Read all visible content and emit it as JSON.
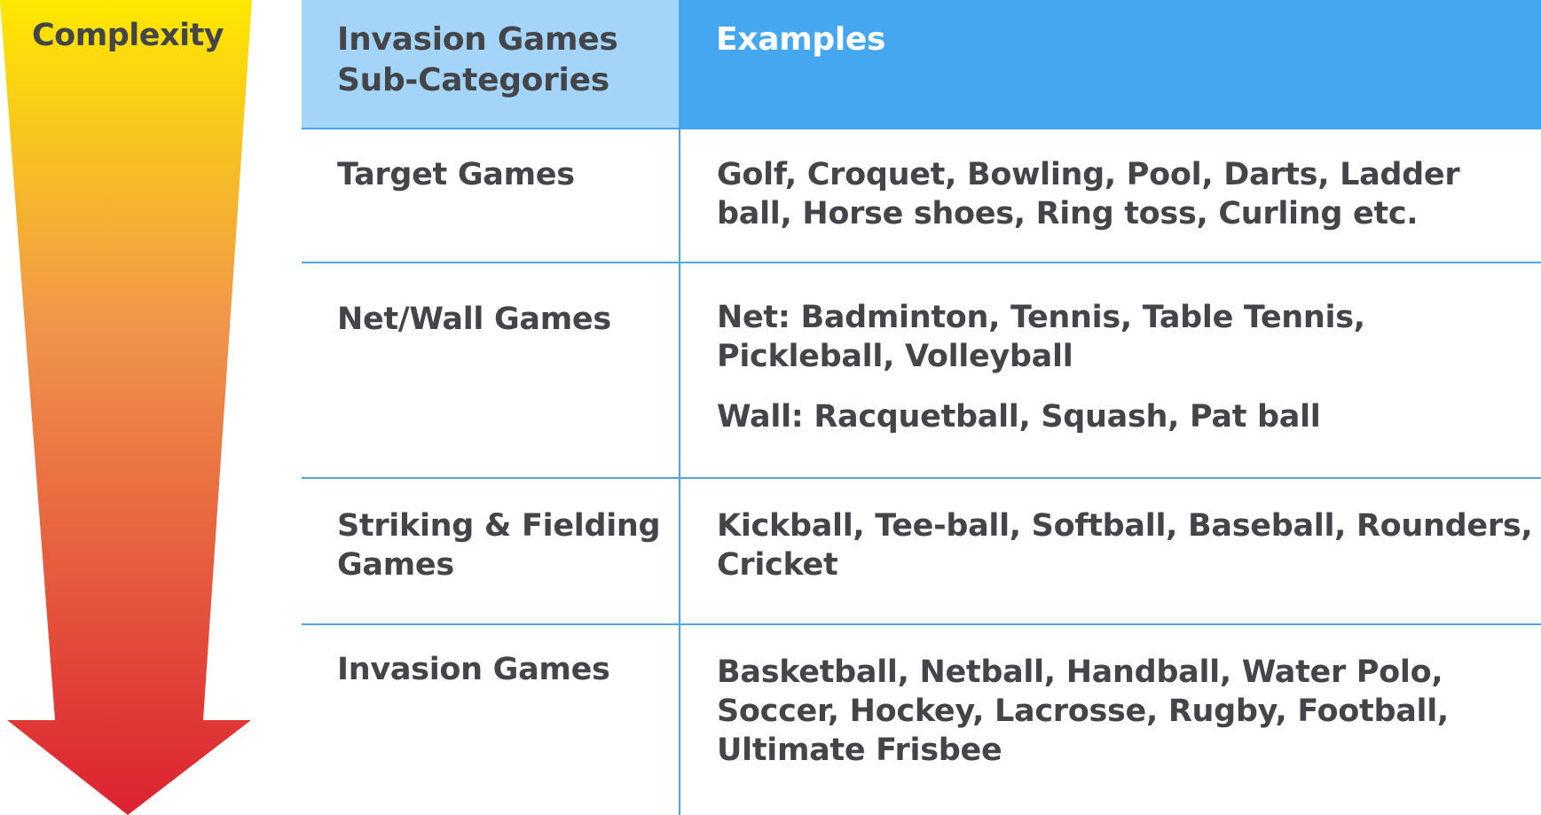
{
  "arrow": {
    "label": "Complexity",
    "gradient_top": "#ffe800",
    "gradient_mid": "#f0954a",
    "gradient_bottom": "#dc2231"
  },
  "table": {
    "header": {
      "category": "Invasion Games Sub-Categories",
      "examples": "Examples"
    },
    "rows": [
      {
        "category": "Target Games",
        "examples": [
          "Golf, Croquet, Bowling, Pool, Darts, Ladder ball, Horse shoes, Ring toss, Curling etc."
        ]
      },
      {
        "category": "Net/Wall Games",
        "examples": [
          "Net: Badminton, Tennis, Table Tennis, Pickleball, Volleyball",
          "Wall: Racquetball, Squash, Pat ball"
        ]
      },
      {
        "category": "Striking & Fielding Games",
        "examples": [
          "Kickball, Tee-ball, Softball, Baseball, Rounders, Cricket"
        ]
      },
      {
        "category": "Invasion Games",
        "examples": [
          "Basketball, Netball, Handball, Water Polo, Soccer, Hockey, Lacrosse, Rugby, Football, Ultimate Frisbee"
        ]
      }
    ],
    "colors": {
      "header_left_bg": "#a4d5f8",
      "header_right_bg": "#44a7ef",
      "rule": "#4fa4e6",
      "text": "#444548"
    }
  }
}
